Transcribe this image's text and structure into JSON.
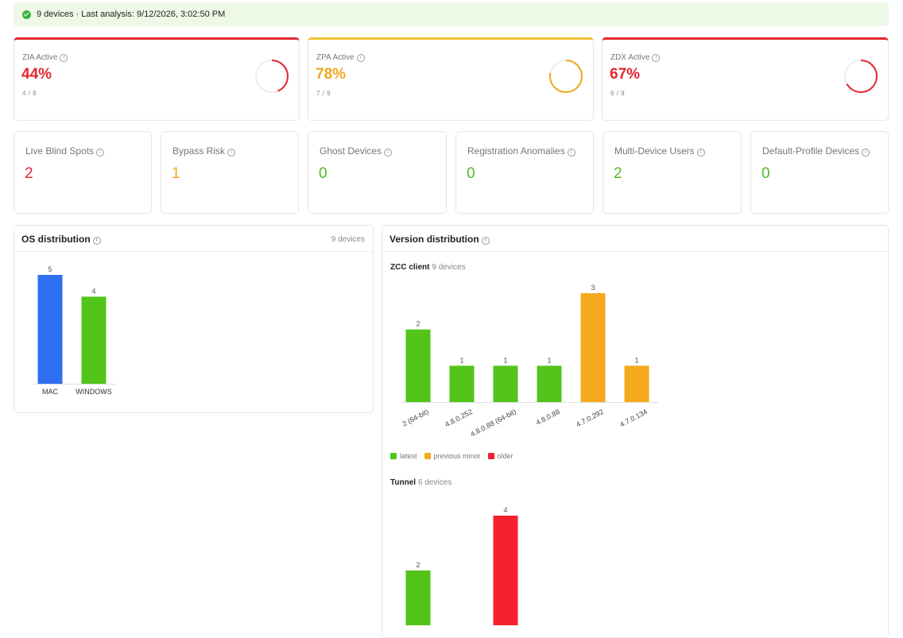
{
  "banner": {
    "text": "9 devices · Last analysis: 9/12/2026, 3:02:50 PM"
  },
  "services": [
    {
      "label": "ZIA Active",
      "percent": "44%",
      "fraction": "4 / 9",
      "value": 0.44,
      "color": "#e5252f"
    },
    {
      "label": "ZPA Active",
      "percent": "78%",
      "fraction": "7 / 9",
      "value": 0.78,
      "color": "#f2a81d"
    },
    {
      "label": "ZDX Active",
      "percent": "67%",
      "fraction": "6 / 9",
      "value": 0.67,
      "color": "#e5252f"
    }
  ],
  "metrics": [
    {
      "label": "Live Blind Spots",
      "value": "2",
      "color": "#e5252f"
    },
    {
      "label": "Bypass Risk",
      "value": "1",
      "color": "#f2a81d"
    },
    {
      "label": "Ghost Devices",
      "value": "0",
      "color": "#4cbb22"
    },
    {
      "label": "Registration Anomalies",
      "value": "0",
      "color": "#4cbb22"
    },
    {
      "label": "Multi-Device Users",
      "value": "2",
      "color": "#4cbb22"
    },
    {
      "label": "Default-Profile Devices",
      "value": "0",
      "color": "#4cbb22"
    }
  ],
  "os_panel": {
    "title": "OS distribution",
    "meta": "9 devices"
  },
  "version_panel": {
    "title": "Version distribution",
    "zcc": {
      "title": "ZCC client",
      "meta": "9 devices"
    },
    "tunnel": {
      "title": "Tunnel",
      "meta": "6 devices"
    },
    "legend": [
      {
        "label": "latest",
        "color": "#52c41a"
      },
      {
        "label": "previous minor",
        "color": "#f5a91d"
      },
      {
        "label": "older",
        "color": "#f5222d"
      }
    ]
  },
  "chart_data": [
    {
      "type": "bar",
      "title": "OS distribution",
      "categories": [
        "MAC",
        "WINDOWS"
      ],
      "values": [
        5,
        4
      ],
      "colors": [
        "#2f6ff1",
        "#52c41a"
      ],
      "ylim": [
        0,
        5
      ]
    },
    {
      "type": "bar",
      "title": "ZCC client",
      "categories": [
        "2 (64-bit)",
        "4.8.0.252",
        "4.8.0.88 (64-bit)",
        "4.8.0.88",
        "4.7.0.292",
        "4.7.0.134"
      ],
      "values": [
        2,
        1,
        1,
        1,
        3,
        1
      ],
      "colors": [
        "#52c41a",
        "#52c41a",
        "#52c41a",
        "#52c41a",
        "#f5a91d",
        "#f5a91d"
      ],
      "ylim": [
        0,
        3
      ]
    },
    {
      "type": "bar",
      "title": "Tunnel",
      "categories": [
        "",
        ""
      ],
      "values": [
        2,
        4
      ],
      "colors": [
        "#52c41a",
        "#f5222d"
      ],
      "ylim": [
        0,
        4
      ]
    }
  ]
}
